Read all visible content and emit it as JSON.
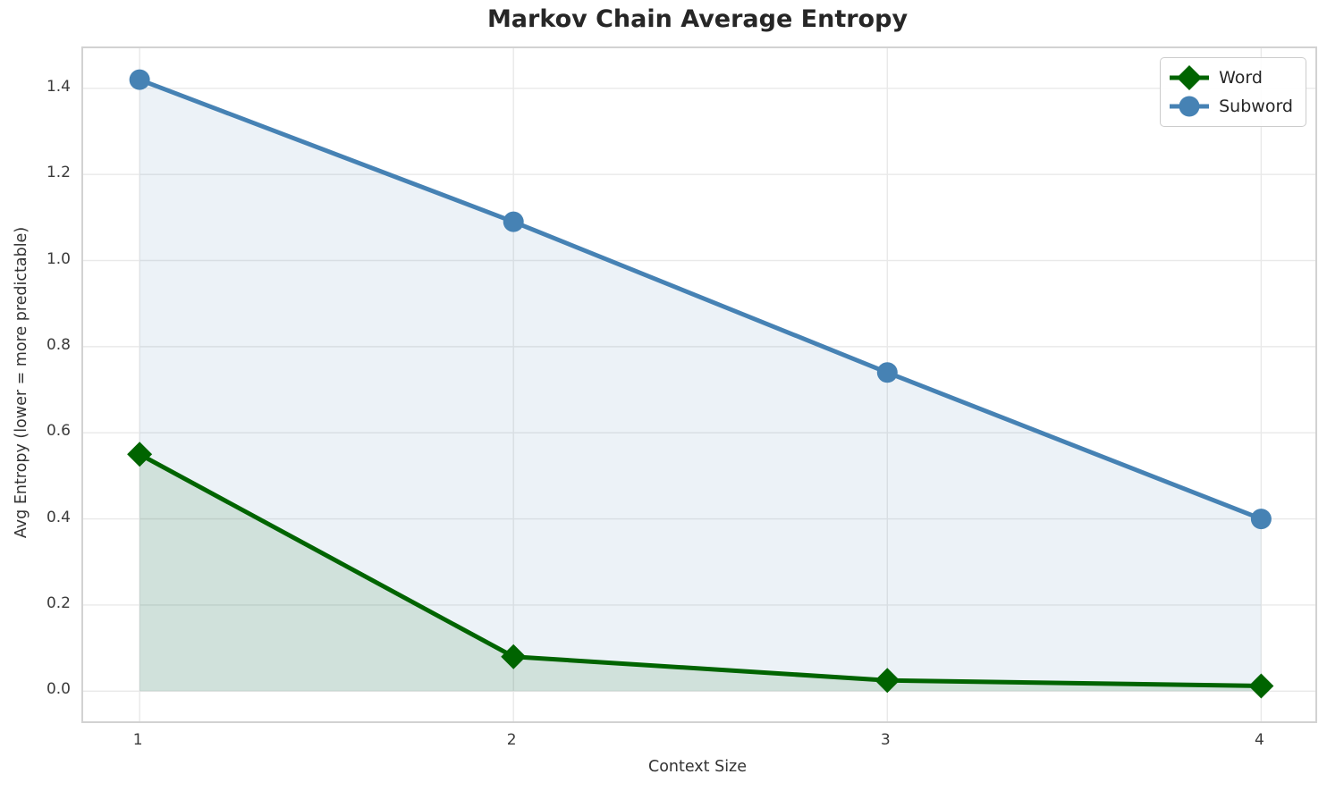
{
  "chart_data": {
    "type": "line",
    "title": "Markov Chain Average Entropy",
    "xlabel": "Context Size",
    "ylabel": "Avg Entropy (lower = more predictable)",
    "x": [
      1,
      2,
      3,
      4
    ],
    "series": [
      {
        "name": "Word",
        "values": [
          0.55,
          0.08,
          0.025,
          0.012
        ],
        "color": "#006400",
        "marker": "diamond",
        "marker_size": 14,
        "line_width": 5,
        "fill_to_zero": true,
        "fill_alpha": 0.12
      },
      {
        "name": "Subword",
        "values": [
          1.42,
          1.09,
          0.74,
          0.4
        ],
        "color": "#4682b4",
        "marker": "circle",
        "marker_size": 12,
        "line_width": 5,
        "fill_to_zero": true,
        "fill_alpha": 0.1
      }
    ],
    "xlim": [
      0.849,
      4.145
    ],
    "ylim": [
      -0.07,
      1.493
    ],
    "xticks": {
      "values": [
        1,
        2,
        3,
        4
      ],
      "labels": [
        "1",
        "2",
        "3",
        "4"
      ]
    },
    "yticks": {
      "values": [
        0.0,
        0.2,
        0.4,
        0.6,
        0.8,
        1.0,
        1.2,
        1.4
      ],
      "labels": [
        "0.0",
        "0.2",
        "0.4",
        "0.6",
        "0.8",
        "1.0",
        "1.2",
        "1.4"
      ]
    },
    "grid": true,
    "grid_color": "#e9e9e9",
    "legend": {
      "position": "upper-right",
      "entries": [
        "Word",
        "Subword"
      ]
    }
  }
}
